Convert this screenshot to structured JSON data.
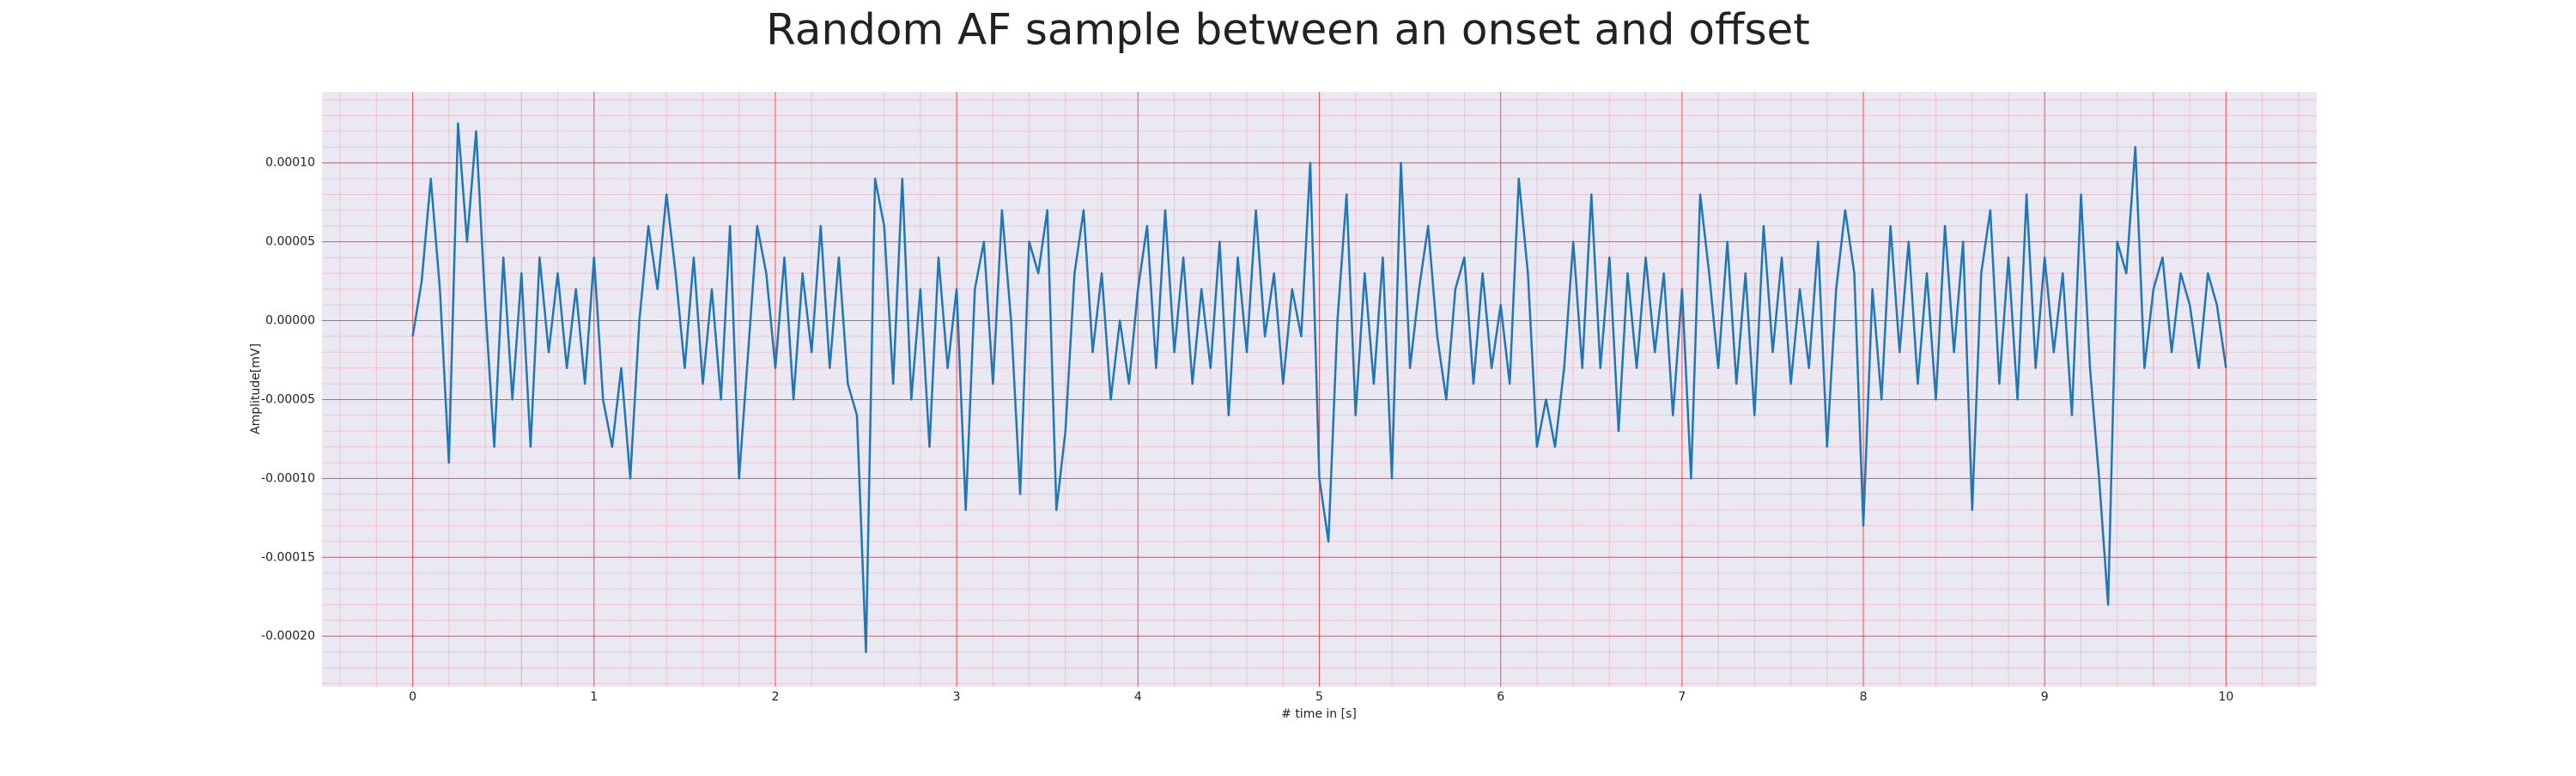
{
  "chart_data": {
    "type": "line",
    "title": "Random AF sample between an onset and offset",
    "xlabel": "# time in [s]",
    "ylabel": "Amplitude[mV]",
    "xlim": [
      -0.5,
      10.5
    ],
    "ylim": [
      -0.000232,
      0.000145
    ],
    "xticks": [
      0,
      1,
      2,
      3,
      4,
      5,
      6,
      7,
      8,
      9,
      10
    ],
    "yticks": [
      {
        "value": -0.0002,
        "label": "-0.00020"
      },
      {
        "value": -0.00015,
        "label": "-0.00015"
      },
      {
        "value": -0.0001,
        "label": "-0.00010"
      },
      {
        "value": -5e-05,
        "label": "-0.00005"
      },
      {
        "value": 0,
        "label": "0.00000"
      },
      {
        "value": 5e-05,
        "label": "0.00005"
      },
      {
        "value": 0.0001,
        "label": "0.00010"
      }
    ],
    "grid": true,
    "minor_grid": true,
    "grid_color": "#ff0000",
    "background": "#eae8f2",
    "color": "#1f77b4",
    "x": [
      0,
      0.05,
      0.1,
      0.15,
      0.2,
      0.25,
      0.3,
      0.35,
      0.4,
      0.45,
      0.5,
      0.55,
      0.6,
      0.65,
      0.7,
      0.75,
      0.8,
      0.85,
      0.9,
      0.95,
      1,
      1.05,
      1.1,
      1.15,
      1.2,
      1.25,
      1.3,
      1.35,
      1.4,
      1.45,
      1.5,
      1.55,
      1.6,
      1.65,
      1.7,
      1.75,
      1.8,
      1.85,
      1.9,
      1.95,
      2,
      2.05,
      2.1,
      2.15,
      2.2,
      2.25,
      2.3,
      2.35,
      2.4,
      2.45,
      2.5,
      2.55,
      2.6,
      2.65,
      2.7,
      2.75,
      2.8,
      2.85,
      2.9,
      2.95,
      3,
      3.05,
      3.1,
      3.15,
      3.2,
      3.25,
      3.3,
      3.35,
      3.4,
      3.45,
      3.5,
      3.55,
      3.6,
      3.65,
      3.7,
      3.75,
      3.8,
      3.85,
      3.9,
      3.95,
      4,
      4.05,
      4.1,
      4.15,
      4.2,
      4.25,
      4.3,
      4.35,
      4.4,
      4.45,
      4.5,
      4.55,
      4.6,
      4.65,
      4.7,
      4.75,
      4.8,
      4.85,
      4.9,
      4.95,
      5,
      5.05,
      5.1,
      5.15,
      5.2,
      5.25,
      5.3,
      5.35,
      5.4,
      5.45,
      5.5,
      5.55,
      5.6,
      5.65,
      5.7,
      5.75,
      5.8,
      5.85,
      5.9,
      5.95,
      6,
      6.05,
      6.1,
      6.15,
      6.2,
      6.25,
      6.3,
      6.35,
      6.4,
      6.45,
      6.5,
      6.55,
      6.6,
      6.65,
      6.7,
      6.75,
      6.8,
      6.85,
      6.9,
      6.95,
      7,
      7.05,
      7.1,
      7.15,
      7.2,
      7.25,
      7.3,
      7.35,
      7.4,
      7.45,
      7.5,
      7.55,
      7.6,
      7.65,
      7.7,
      7.75,
      7.8,
      7.85,
      7.9,
      7.95,
      8,
      8.05,
      8.1,
      8.15,
      8.2,
      8.25,
      8.3,
      8.35,
      8.4,
      8.45,
      8.5,
      8.55,
      8.6,
      8.65,
      8.7,
      8.75,
      8.8,
      8.85,
      8.9,
      8.95,
      9,
      9.05,
      9.1,
      9.15,
      9.2,
      9.25,
      9.3,
      9.35,
      9.4,
      9.45,
      9.5,
      9.55,
      9.6,
      9.65,
      9.7,
      9.75,
      9.8,
      9.85,
      9.9,
      9.95,
      10
    ],
    "values": [
      -1e-05,
      2.5e-05,
      9e-05,
      2e-05,
      -9e-05,
      0.000125,
      5e-05,
      0.00012,
      1e-05,
      -8e-05,
      4e-05,
      -5e-05,
      3e-05,
      -8e-05,
      4e-05,
      -2e-05,
      3e-05,
      -3e-05,
      2e-05,
      -4e-05,
      4e-05,
      -5e-05,
      -8e-05,
      -3e-05,
      -0.0001,
      0,
      6e-05,
      2e-05,
      8e-05,
      3e-05,
      -3e-05,
      4e-05,
      -4e-05,
      2e-05,
      -5e-05,
      6e-05,
      -0.0001,
      -2e-05,
      6e-05,
      3e-05,
      -3e-05,
      4e-05,
      -5e-05,
      3e-05,
      -2e-05,
      6e-05,
      -3e-05,
      4e-05,
      -4e-05,
      -6e-05,
      -0.00021,
      9e-05,
      6e-05,
      -4e-05,
      9e-05,
      -5e-05,
      2e-05,
      -8e-05,
      4e-05,
      -3e-05,
      2e-05,
      -0.00012,
      2e-05,
      5e-05,
      -4e-05,
      7e-05,
      0,
      -0.00011,
      5e-05,
      3e-05,
      7e-05,
      -0.00012,
      -7e-05,
      3e-05,
      7e-05,
      -2e-05,
      3e-05,
      -5e-05,
      0,
      -4e-05,
      2e-05,
      6e-05,
      -3e-05,
      7e-05,
      -2e-05,
      4e-05,
      -4e-05,
      2e-05,
      -3e-05,
      5e-05,
      -6e-05,
      4e-05,
      -2e-05,
      7e-05,
      -1e-05,
      3e-05,
      -4e-05,
      2e-05,
      -1e-05,
      0.0001,
      -0.0001,
      -0.00014,
      0,
      8e-05,
      -6e-05,
      3e-05,
      -4e-05,
      4e-05,
      -0.0001,
      0.0001,
      -3e-05,
      2e-05,
      6e-05,
      -1e-05,
      -5e-05,
      2e-05,
      4e-05,
      -4e-05,
      3e-05,
      -3e-05,
      1e-05,
      -4e-05,
      9e-05,
      3e-05,
      -8e-05,
      -5e-05,
      -8e-05,
      -3e-05,
      5e-05,
      -3e-05,
      8e-05,
      -3e-05,
      4e-05,
      -7e-05,
      3e-05,
      -3e-05,
      4e-05,
      -2e-05,
      3e-05,
      -6e-05,
      2e-05,
      -0.0001,
      8e-05,
      3e-05,
      -3e-05,
      5e-05,
      -4e-05,
      3e-05,
      -6e-05,
      6e-05,
      -2e-05,
      4e-05,
      -4e-05,
      2e-05,
      -3e-05,
      5e-05,
      -8e-05,
      2e-05,
      7e-05,
      3e-05,
      -0.00013,
      2e-05,
      -5e-05,
      6e-05,
      -2e-05,
      5e-05,
      -4e-05,
      3e-05,
      -5e-05,
      6e-05,
      -2e-05,
      5e-05,
      -0.00012,
      3e-05,
      7e-05,
      -4e-05,
      4e-05,
      -5e-05,
      8e-05,
      -3e-05,
      4e-05,
      -2e-05,
      3e-05,
      -6e-05,
      8e-05,
      -3e-05,
      -0.0001,
      -0.00018,
      5e-05,
      3e-05,
      0.00011,
      -3e-05,
      2e-05,
      4e-05,
      -2e-05,
      3e-05,
      1e-05,
      -3e-05,
      3e-05,
      1e-05,
      -3e-05
    ]
  }
}
